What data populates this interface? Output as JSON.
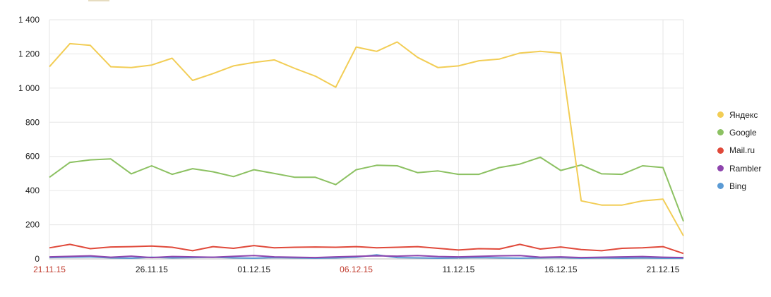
{
  "chart_data": {
    "type": "line",
    "x": [
      "21.11.15",
      "22.11.15",
      "23.11.15",
      "24.11.15",
      "25.11.15",
      "26.11.15",
      "27.11.15",
      "28.11.15",
      "29.11.15",
      "30.11.15",
      "01.12.15",
      "02.12.15",
      "03.12.15",
      "04.12.15",
      "05.12.15",
      "06.12.15",
      "07.12.15",
      "08.12.15",
      "09.12.15",
      "10.12.15",
      "11.12.15",
      "12.12.15",
      "13.12.15",
      "14.12.15",
      "15.12.15",
      "16.12.15",
      "17.12.15",
      "18.12.15",
      "19.12.15",
      "20.12.15",
      "21.12.15",
      "22.12.15"
    ],
    "x_tick_labels": [
      "21.11.15",
      "26.11.15",
      "01.12.15",
      "06.12.15",
      "11.12.15",
      "16.12.15",
      "21.12.15"
    ],
    "x_tick_colors": [
      "#c0392b",
      "#222222",
      "#222222",
      "#c0392b",
      "#222222",
      "#222222",
      "#222222"
    ],
    "y_tick_labels": [
      "0",
      "200",
      "400",
      "600",
      "800",
      "1 000",
      "1 200",
      "1 400"
    ],
    "ylim": [
      0,
      1400
    ],
    "grid": true,
    "legend_position": "right",
    "title": "",
    "xlabel": "",
    "ylabel": "",
    "series": [
      {
        "name": "Яндекс",
        "color": "#f2cd55",
        "values": [
          1125,
          1260,
          1250,
          1125,
          1120,
          1135,
          1175,
          1045,
          1085,
          1130,
          1150,
          1165,
          1115,
          1070,
          1005,
          1240,
          1215,
          1270,
          1180,
          1120,
          1130,
          1160,
          1170,
          1205,
          1215,
          1205,
          340,
          315,
          315,
          340,
          350,
          135
        ]
      },
      {
        "name": "Google",
        "color": "#8cc162",
        "values": [
          478,
          565,
          580,
          585,
          498,
          545,
          495,
          528,
          510,
          482,
          522,
          500,
          478,
          478,
          435,
          522,
          548,
          545,
          505,
          515,
          495,
          495,
          535,
          555,
          595,
          518,
          550,
          498,
          495,
          545,
          535,
          220
        ]
      },
      {
        "name": "Mail.ru",
        "color": "#e0493a",
        "values": [
          65,
          85,
          60,
          70,
          72,
          75,
          68,
          48,
          72,
          62,
          78,
          65,
          68,
          70,
          68,
          72,
          65,
          68,
          72,
          62,
          52,
          60,
          58,
          85,
          58,
          70,
          55,
          48,
          62,
          65,
          72,
          32
        ]
      },
      {
        "name": "Rambler",
        "color": "#8e44ad",
        "values": [
          12,
          15,
          18,
          10,
          16,
          8,
          14,
          12,
          10,
          15,
          20,
          12,
          10,
          8,
          12,
          15,
          18,
          16,
          20,
          14,
          12,
          15,
          18,
          20,
          10,
          12,
          8,
          10,
          12,
          14,
          10,
          8
        ]
      },
      {
        "name": "Bing",
        "color": "#5b9bd5",
        "values": [
          8,
          10,
          12,
          6,
          4,
          10,
          6,
          8,
          10,
          6,
          4,
          8,
          6,
          4,
          6,
          10,
          24,
          8,
          6,
          4,
          6,
          8,
          6,
          4,
          6,
          8,
          4,
          6,
          4,
          6,
          4,
          4
        ]
      }
    ]
  }
}
